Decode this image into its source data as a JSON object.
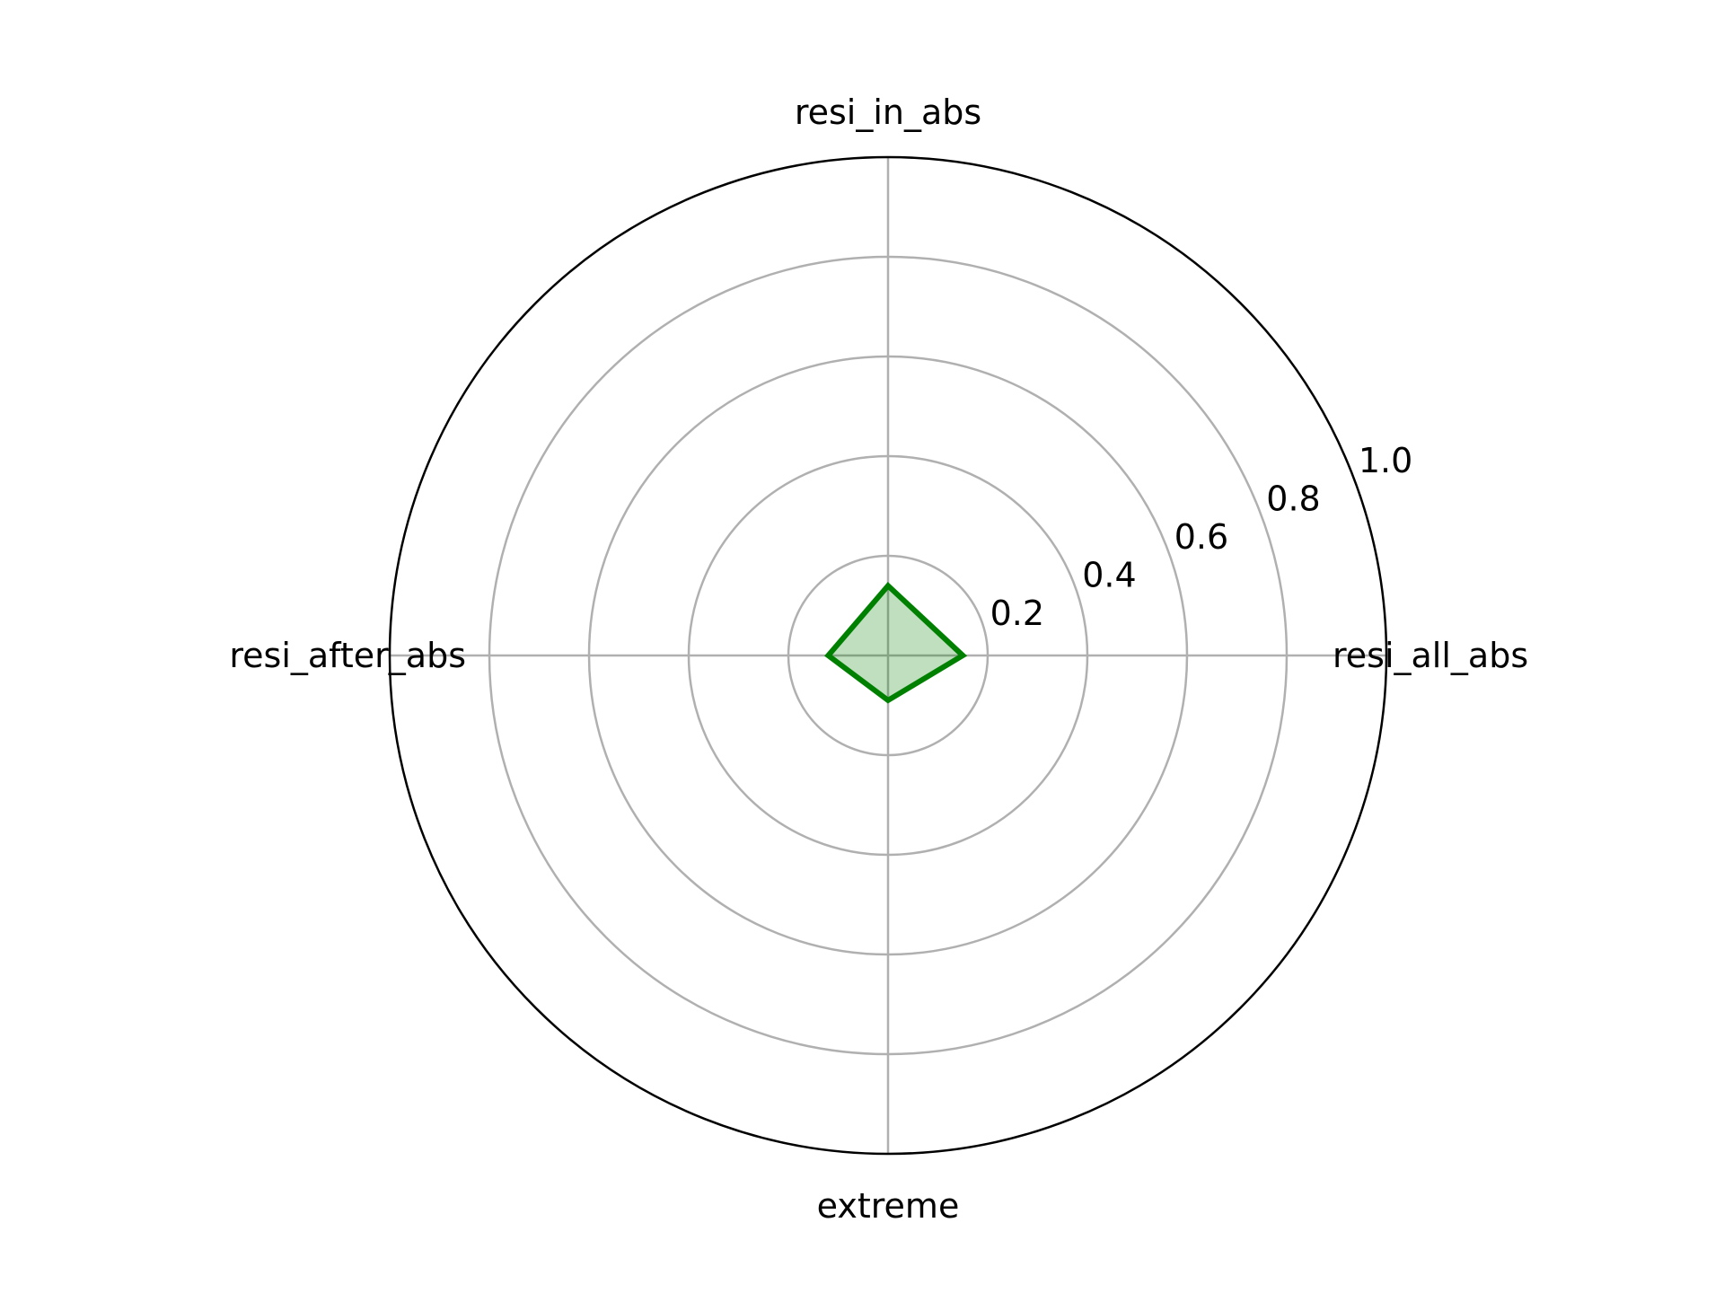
{
  "chart_data": {
    "type": "radar",
    "categories": [
      "resi_all_abs",
      "resi_in_abs",
      "resi_after_abs",
      "extreme"
    ],
    "series": [
      {
        "values": [
          0.15,
          0.14,
          0.12,
          0.09
        ],
        "color": "#008000",
        "fill_color": "#008000",
        "fill_opacity": 0.25
      }
    ],
    "rlim": [
      0,
      1.0
    ],
    "rticks": [
      0.2,
      0.4,
      0.6,
      0.8,
      1.0
    ],
    "rtick_labels": [
      "0.2",
      "0.4",
      "0.6",
      "0.8",
      "1.0"
    ],
    "rlabel_angle_deg": 22.5,
    "grid": true,
    "grid_color": "#b0b0b0",
    "outline_color": "#000000"
  }
}
